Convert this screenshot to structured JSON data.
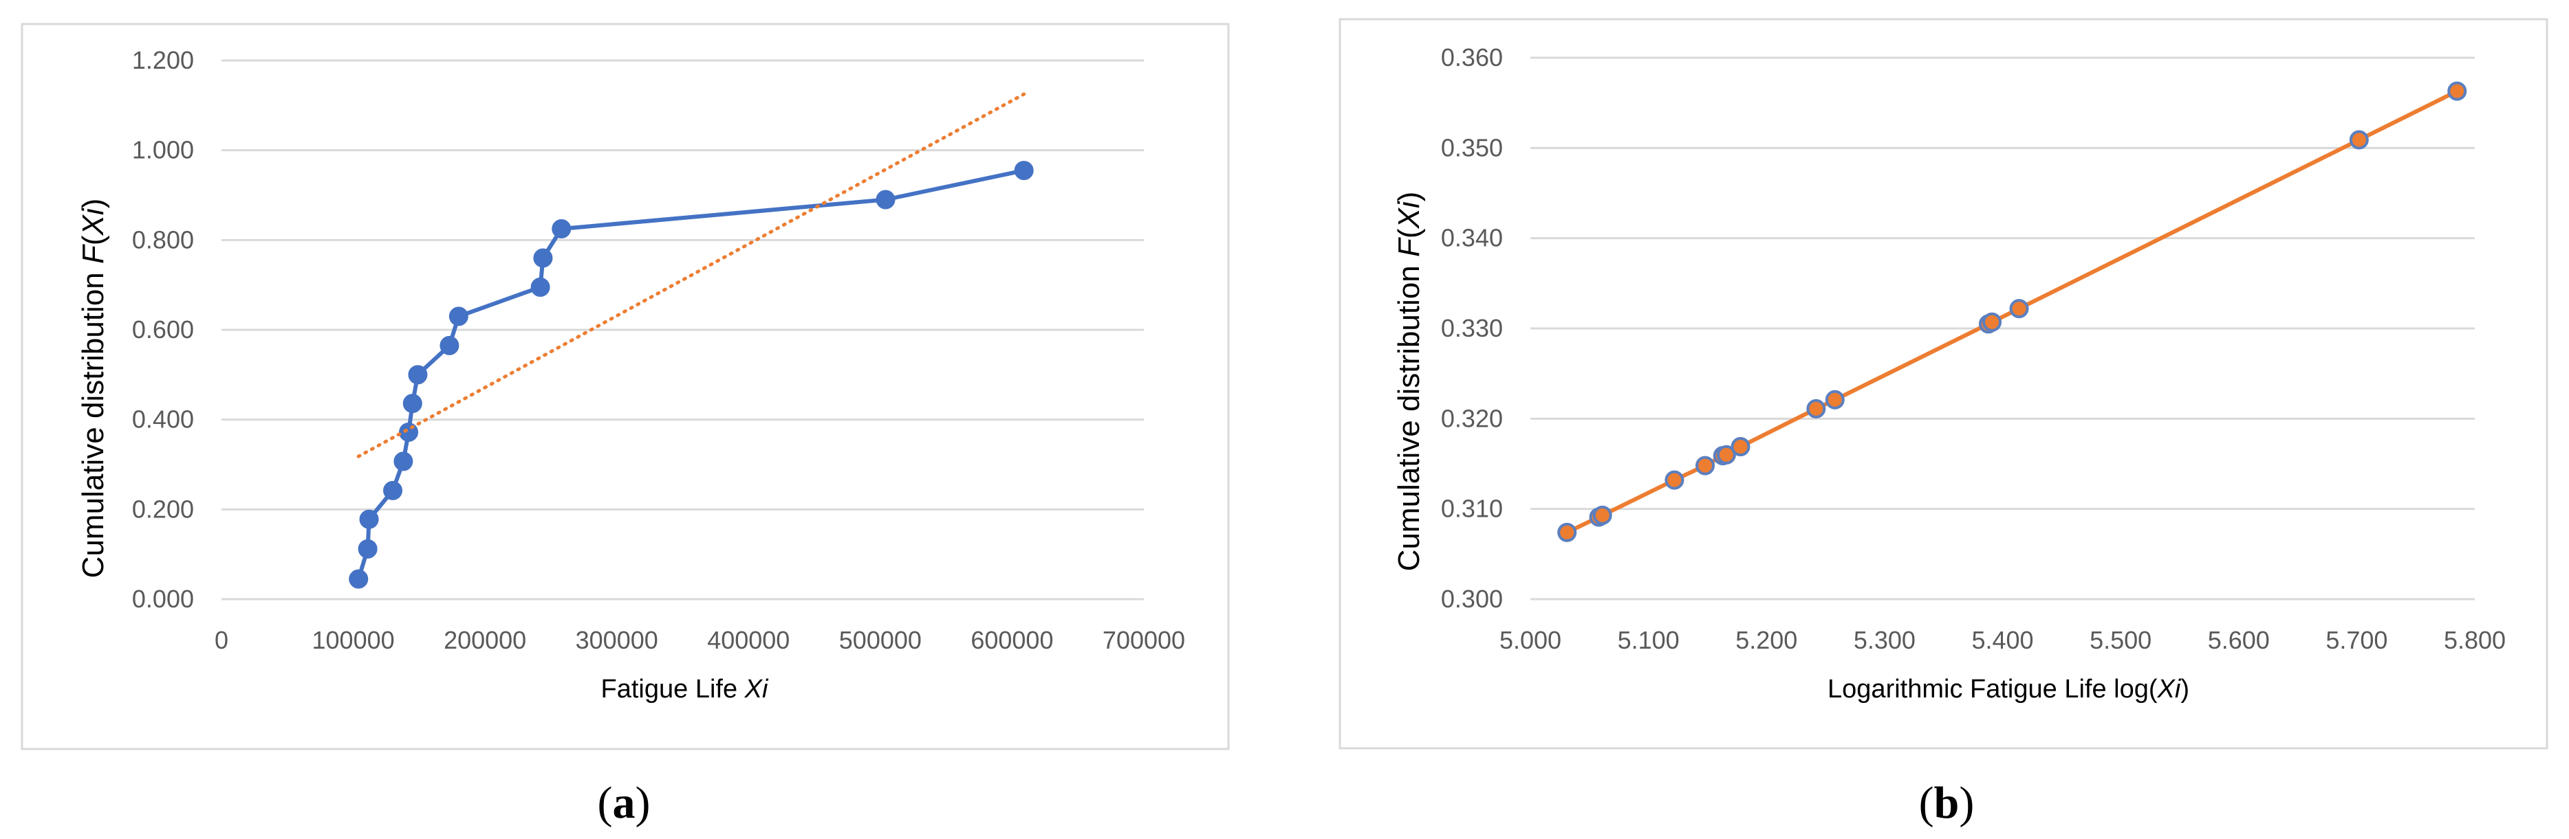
{
  "chart_data": [
    {
      "type": "scatter",
      "panel_label": "(a)",
      "xlabel": "Fatigue Life Xi",
      "ylabel": "Cumulative distribution F(Xi)",
      "xlim": [
        0,
        700000
      ],
      "ylim": [
        0,
        1.2
      ],
      "xticks": [
        "0",
        "100000",
        "200000",
        "300000",
        "400000",
        "500000",
        "600000",
        "700000"
      ],
      "yticks": [
        "0.000",
        "0.200",
        "0.400",
        "0.600",
        "0.800",
        "1.000",
        "1.200"
      ],
      "grid": "horizontal",
      "legend": "none",
      "series": [
        {
          "style": "line+markers",
          "color": "#4472c4",
          "x": [
            104000,
            111000,
            112000,
            130000,
            138000,
            142000,
            145000,
            149000,
            173000,
            180000,
            242000,
            244000,
            258000,
            504000,
            609000
          ],
          "y": [
            0.045,
            0.112,
            0.178,
            0.242,
            0.307,
            0.372,
            0.436,
            0.5,
            0.565,
            0.63,
            0.695,
            0.76,
            0.825,
            0.89,
            0.955
          ]
        },
        {
          "style": "dotted-trendline",
          "color": "#ed7d31",
          "x": [
            104000,
            609000
          ],
          "y": [
            0.318,
            1.125
          ]
        }
      ]
    },
    {
      "type": "scatter",
      "panel_label": "(b)",
      "xlabel": "Logarithmic Fatigue Life  log(Xi)",
      "ylabel": "Cumulative distribution F(Xi)",
      "xlim": [
        5.0,
        5.8
      ],
      "ylim": [
        0.3,
        0.36
      ],
      "xticks": [
        "5.000",
        "5.100",
        "5.200",
        "5.300",
        "5.400",
        "5.500",
        "5.600",
        "5.700",
        "5.800"
      ],
      "yticks": [
        "0.300",
        "0.310",
        "0.320",
        "0.330",
        "0.340",
        "0.350",
        "0.360"
      ],
      "grid": "horizontal",
      "legend": "none",
      "series": [
        {
          "style": "line+markers",
          "color": "#ed7d31",
          "marker_edge": "#5b7fbf",
          "x": [
            5.031,
            5.058,
            5.061,
            5.122,
            5.148,
            5.163,
            5.166,
            5.178,
            5.242,
            5.258,
            5.388,
            5.391,
            5.414,
            5.702,
            5.785
          ],
          "y": [
            0.3074,
            0.3091,
            0.3093,
            0.3132,
            0.3148,
            0.3159,
            0.316,
            0.3169,
            0.3211,
            0.3221,
            0.3305,
            0.3307,
            0.3322,
            0.3509,
            0.3563
          ]
        }
      ]
    }
  ]
}
